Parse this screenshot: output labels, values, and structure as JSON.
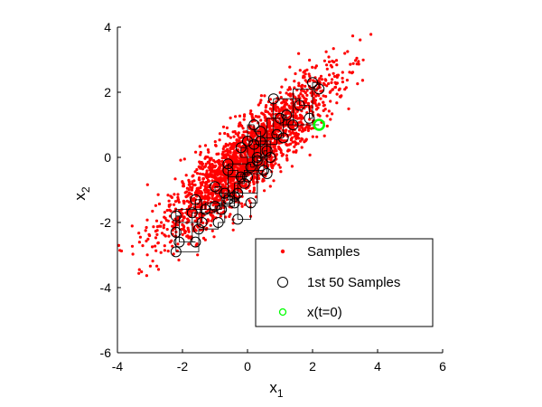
{
  "chart_data": {
    "type": "scatter",
    "title": "",
    "xlabel": {
      "base": "x",
      "sub": "1"
    },
    "ylabel": {
      "base": "x",
      "sub": "2"
    },
    "xlim": [
      -4,
      6
    ],
    "ylim": [
      -6,
      4
    ],
    "xticks": [
      -4,
      -2,
      0,
      2,
      4,
      6
    ],
    "yticks": [
      -6,
      -4,
      -2,
      0,
      2,
      4
    ],
    "xtick_labels": [
      "-4",
      "-2",
      "0",
      "2",
      "4",
      "6"
    ],
    "ytick_labels": [
      "-6",
      "-4",
      "-2",
      "0",
      "2",
      "4"
    ],
    "grid": false,
    "legend_position": "bottom-right",
    "series": [
      {
        "name": "Samples",
        "color": "#ff0000",
        "marker": "dot",
        "distribution": {
          "mean": [
            0,
            0
          ],
          "covariance": [
            [
              1.7,
              1.45
            ],
            [
              1.45,
              1.55
            ]
          ],
          "count": 2200
        }
      },
      {
        "name": "1st 50 Samples",
        "color": "#000000",
        "marker": "open-circle",
        "trace": "gibbs-steps",
        "points": [
          [
            2.2,
            1.0
          ],
          [
            1.2,
            1.3
          ],
          [
            1.1,
            0.6
          ],
          [
            0.4,
            0.5
          ],
          [
            0.7,
            0.0
          ],
          [
            -0.2,
            0.3
          ],
          [
            0.0,
            -0.6
          ],
          [
            -0.6,
            -0.4
          ],
          [
            -0.3,
            -1.1
          ],
          [
            -1.0,
            -0.9
          ],
          [
            -0.8,
            -1.6
          ],
          [
            -1.6,
            -1.3
          ],
          [
            -1.4,
            -2.0
          ],
          [
            -2.2,
            -1.8
          ],
          [
            -2.1,
            -2.6
          ],
          [
            -1.6,
            -2.6
          ],
          [
            -1.7,
            -1.7
          ],
          [
            -1.0,
            -1.5
          ],
          [
            -0.4,
            -1.2
          ],
          [
            -0.6,
            -0.2
          ],
          [
            0.1,
            -0.3
          ],
          [
            0.2,
            0.4
          ],
          [
            0.9,
            0.7
          ],
          [
            0.8,
            1.8
          ],
          [
            1.6,
            1.6
          ],
          [
            1.9,
            1.2
          ],
          [
            2.0,
            2.3
          ],
          [
            2.2,
            2.1
          ],
          [
            1.4,
            1.0
          ],
          [
            1.0,
            1.2
          ],
          [
            0.6,
            0.2
          ],
          [
            0.5,
            -0.4
          ],
          [
            -0.1,
            -0.8
          ],
          [
            -0.4,
            -1.4
          ],
          [
            -1.3,
            -1.6
          ],
          [
            -2.2,
            -2.3
          ],
          [
            -2.2,
            -2.9
          ],
          [
            -1.5,
            -2.2
          ],
          [
            -0.9,
            -2.0
          ],
          [
            -0.7,
            -1.1
          ],
          [
            0.3,
            -0.1
          ],
          [
            0.4,
            0.8
          ],
          [
            0.2,
            1.0
          ],
          [
            0.0,
            0.5
          ],
          [
            0.6,
            -0.5
          ],
          [
            -0.2,
            -0.6
          ],
          [
            -0.6,
            -1.3
          ],
          [
            -0.3,
            -1.9
          ],
          [
            0.1,
            -1.4
          ],
          [
            0.3,
            0.0
          ]
        ]
      },
      {
        "name": "x(t=0)",
        "color": "#00ff00",
        "marker": "open-circle",
        "points": [
          [
            2.2,
            1.0
          ]
        ]
      }
    ]
  }
}
